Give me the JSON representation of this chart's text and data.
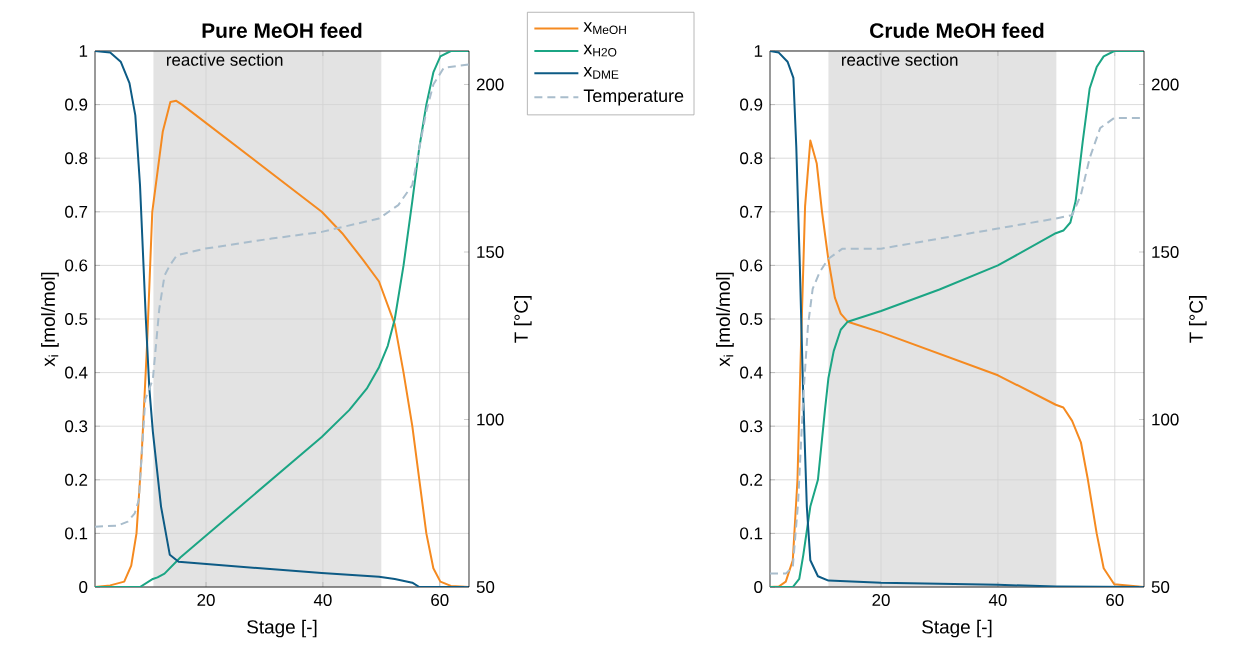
{
  "chart_data": [
    {
      "type": "line",
      "title": "Pure MeOH feed",
      "xlabel": "Stage [-]",
      "ylabel": "x$_{i}$ [mol/mol]",
      "y2label": "T [°C]",
      "xlim": [
        1,
        65
      ],
      "xticks": [
        20,
        40,
        60
      ],
      "ylim": [
        0,
        1
      ],
      "yticks": [
        0,
        0.1,
        0.2,
        0.3,
        0.4,
        0.5,
        0.6,
        0.7,
        0.8,
        0.9,
        1
      ],
      "y2lim": [
        50,
        210
      ],
      "y2ticks": [
        50,
        100,
        150,
        200
      ],
      "grid": true,
      "legend": "right",
      "bands": [
        {
          "axis": "x",
          "from": 11,
          "to": 50,
          "label": "reactive section",
          "color": "#e3e3e3"
        }
      ],
      "series": [
        {
          "name": "x$_{MeOH}$",
          "color": "#f58a20",
          "line_style": "solid",
          "x": [
            1,
            3.6,
            6,
            7.2,
            8.1,
            9,
            9.9,
            10.8,
            12.6,
            13.9,
            14.9,
            15.9,
            39.8,
            43.3,
            46.9,
            49.6,
            52.3,
            53.8,
            55.3,
            56.5,
            57.7,
            58.9,
            60.1,
            61.9,
            65
          ],
          "values": [
            0,
            0.003,
            0.01,
            0.04,
            0.1,
            0.25,
            0.45,
            0.7,
            0.85,
            0.905,
            0.907,
            0.9,
            0.7,
            0.66,
            0.61,
            0.57,
            0.49,
            0.4,
            0.3,
            0.2,
            0.1,
            0.035,
            0.01,
            0.002,
            0
          ]
        },
        {
          "name": "x$_{H2O}$",
          "color": "#1ba584",
          "line_style": "solid",
          "x": [
            1,
            8.7,
            10.9,
            11.7,
            12.9,
            15.6,
            39.8,
            44.5,
            47.5,
            49.6,
            51.1,
            52.3,
            53.8,
            55.3,
            56.5,
            57.7,
            58.9,
            60.1,
            61.9,
            65
          ],
          "values": [
            0,
            0,
            0.015,
            0.018,
            0.025,
            0.055,
            0.28,
            0.33,
            0.37,
            0.41,
            0.45,
            0.5,
            0.6,
            0.72,
            0.82,
            0.9,
            0.96,
            0.99,
            1,
            1
          ]
        },
        {
          "name": "x$_{DME}$",
          "color": "#0d5b85",
          "line_style": "solid",
          "x": [
            1,
            3.6,
            5.4,
            6.9,
            7.9,
            8.7,
            9.3,
            9.7,
            10.3,
            10.9,
            12.3,
            13.8,
            15.3,
            39.8,
            49.6,
            52.3,
            55.3,
            56.5,
            65
          ],
          "values": [
            1,
            0.997,
            0.98,
            0.94,
            0.88,
            0.75,
            0.6,
            0.5,
            0.37,
            0.29,
            0.15,
            0.06,
            0.047,
            0.026,
            0.019,
            0.015,
            0.008,
            0,
            0
          ]
        },
        {
          "name": "Temperature",
          "color": "#a9bdcc",
          "line_style": "dashed",
          "axis": "y2",
          "x": [
            1,
            4.8,
            6.6,
            7.8,
            8.5,
            9.6,
            10.9,
            12,
            12.9,
            13.8,
            15,
            19.8,
            31.2,
            39.8,
            49.6,
            52.9,
            55.3,
            56.5,
            57.7,
            58.9,
            60.7,
            65
          ],
          "values": [
            68,
            68.3,
            69.5,
            72,
            76,
            106,
            112,
            133,
            143,
            146,
            149,
            151,
            154,
            156,
            160,
            164,
            170,
            181,
            192,
            200,
            205,
            206
          ]
        }
      ]
    },
    {
      "type": "line",
      "title": "Crude MeOH feed",
      "xlabel": "Stage [-]",
      "ylabel": "x$_{i}$ [mol/mol]",
      "y2label": "T [°C]",
      "xlim": [
        1,
        65
      ],
      "xticks": [
        20,
        40,
        60
      ],
      "ylim": [
        0,
        1
      ],
      "yticks": [
        0,
        0.1,
        0.2,
        0.3,
        0.4,
        0.5,
        0.6,
        0.7,
        0.8,
        0.9,
        1
      ],
      "y2lim": [
        50,
        210
      ],
      "y2ticks": [
        50,
        100,
        150,
        200
      ],
      "grid": true,
      "bands": [
        {
          "axis": "x",
          "from": 11,
          "to": 50,
          "label": "reactive section",
          "color": "#e3e3e3"
        }
      ],
      "series": [
        {
          "color": "#f58a20",
          "line_style": "solid",
          "x": [
            1,
            2.5,
            3.7,
            4.9,
            5.7,
            6.3,
            7,
            7.9,
            9,
            9.9,
            11,
            12.1,
            13.1,
            14.3,
            20,
            40,
            49.9,
            51.2,
            52.7,
            54.2,
            55.4,
            56.9,
            58.1,
            59.9,
            65
          ],
          "values": [
            0,
            0.001,
            0.01,
            0.05,
            0.2,
            0.45,
            0.71,
            0.833,
            0.79,
            0.7,
            0.61,
            0.54,
            0.51,
            0.495,
            0.475,
            0.395,
            0.34,
            0.335,
            0.31,
            0.27,
            0.2,
            0.1,
            0.035,
            0.005,
            0
          ]
        },
        {
          "color": "#1ba584",
          "line_style": "solid",
          "x": [
            1,
            4.9,
            6,
            6.7,
            7.9,
            9.2,
            10.4,
            11,
            11.9,
            13.1,
            14.3,
            20,
            30,
            40,
            49.9,
            51.2,
            52.4,
            53.3,
            54.5,
            55.7,
            56.9,
            58.1,
            59.9,
            65
          ],
          "values": [
            0,
            0,
            0.015,
            0.06,
            0.15,
            0.2,
            0.33,
            0.39,
            0.44,
            0.48,
            0.495,
            0.515,
            0.555,
            0.6,
            0.66,
            0.665,
            0.68,
            0.72,
            0.83,
            0.93,
            0.97,
            0.99,
            1,
            1
          ]
        },
        {
          "color": "#0d5b85",
          "line_style": "solid",
          "x": [
            1,
            2.5,
            4,
            5,
            5.5,
            6.1,
            6.7,
            7.3,
            7.9,
            9.2,
            11,
            20,
            40,
            49.9,
            65
          ],
          "values": [
            1,
            0.997,
            0.98,
            0.95,
            0.82,
            0.6,
            0.35,
            0.15,
            0.05,
            0.02,
            0.012,
            0.008,
            0.004,
            0.001,
            0
          ]
        },
        {
          "color": "#a9bdcc",
          "line_style": "dashed",
          "axis": "y2",
          "x": [
            1,
            3.7,
            4.9,
            5.8,
            6.7,
            7.5,
            8.3,
            9.5,
            11,
            13.4,
            20,
            30,
            40,
            49.9,
            52.7,
            54.2,
            55.7,
            57.5,
            59.9,
            65
          ],
          "values": [
            54,
            54,
            56,
            75,
            107,
            128,
            139,
            144,
            148,
            151,
            151,
            154,
            157,
            160,
            161,
            167,
            178,
            187,
            190,
            190
          ]
        }
      ]
    }
  ]
}
